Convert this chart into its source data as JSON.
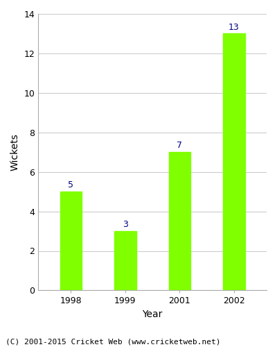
{
  "categories": [
    "1998",
    "1999",
    "2001",
    "2002"
  ],
  "values": [
    5,
    3,
    7,
    13
  ],
  "bar_color": "#7FFF00",
  "bar_edge_color": "#7FFF00",
  "label_color": "#000080",
  "xlabel": "Year",
  "ylabel": "Wickets",
  "ylim": [
    0,
    14
  ],
  "yticks": [
    0,
    2,
    4,
    6,
    8,
    10,
    12,
    14
  ],
  "footnote": "(C) 2001-2015 Cricket Web (www.cricketweb.net)",
  "label_fontsize": 9,
  "axis_label_fontsize": 10,
  "tick_fontsize": 9,
  "footnote_fontsize": 8,
  "background_color": "#ffffff",
  "grid_color": "#cccccc",
  "bar_width": 0.4
}
